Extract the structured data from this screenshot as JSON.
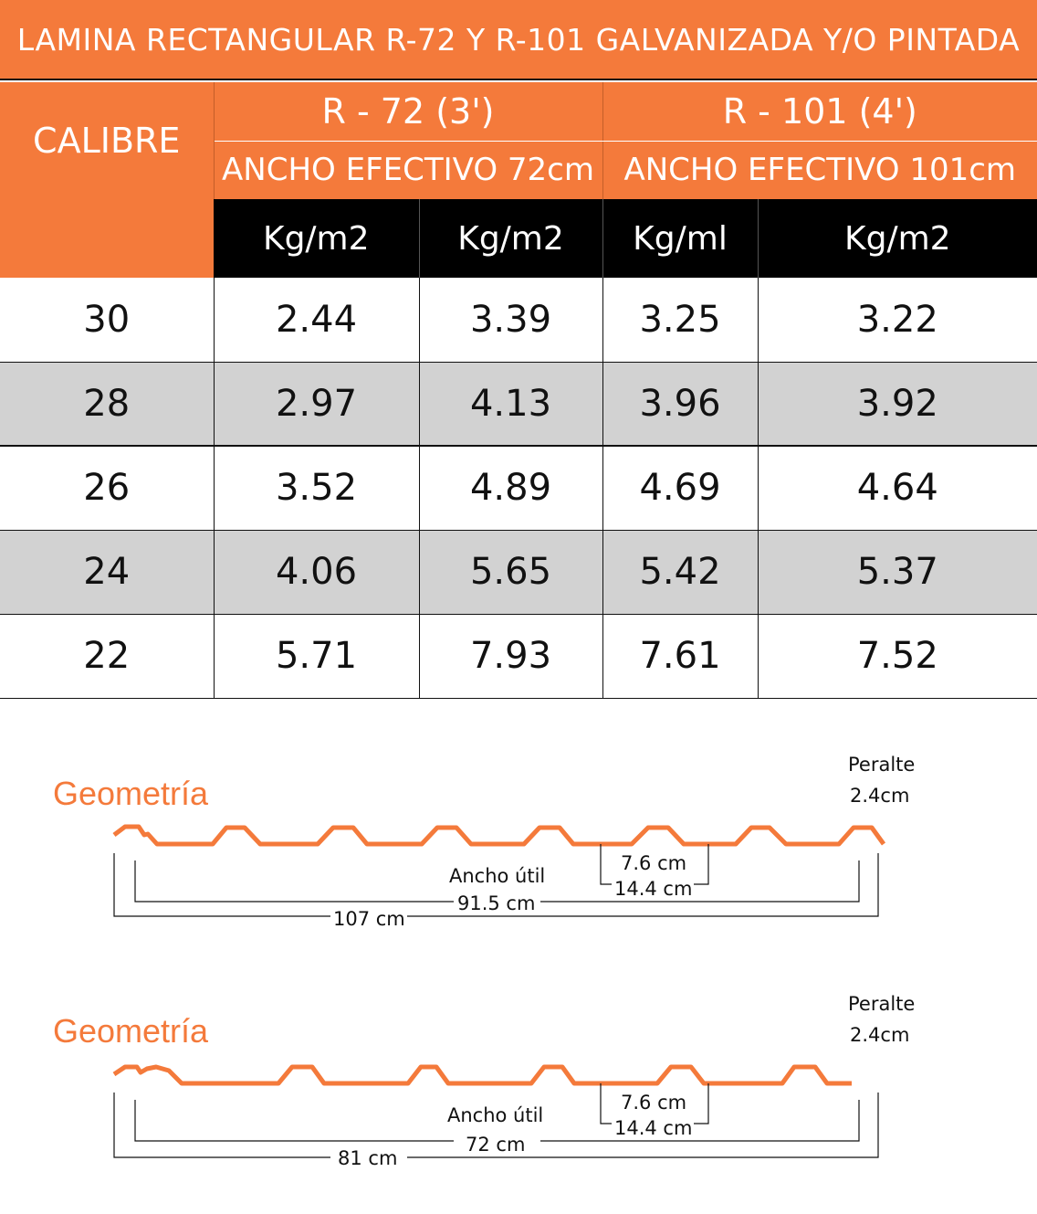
{
  "title": "LAMINA RECTANGULAR R-72 Y R-101 GALVANIZADA Y/O PINTADA",
  "table": {
    "calibre_header": "CALIBRE",
    "groups": [
      {
        "name": "R - 72 (3')",
        "ancho": "ANCHO  EFECTIVO 72cm"
      },
      {
        "name": "R - 101 (4')",
        "ancho": "ANCHO  EFECTIVO 101cm"
      }
    ],
    "units": [
      "Kg/m2",
      "Kg/m2",
      "Kg/ml",
      "Kg/m2"
    ],
    "rows": [
      {
        "calibre": "30",
        "values": [
          "2.44",
          "3.39",
          "3.25",
          "3.22"
        ]
      },
      {
        "calibre": "28",
        "values": [
          "2.97",
          "4.13",
          "3.96",
          "3.92"
        ]
      },
      {
        "calibre": "26",
        "values": [
          "3.52",
          "4.89",
          "4.69",
          "4.64"
        ]
      },
      {
        "calibre": "24",
        "values": [
          "4.06",
          "5.65",
          "5.42",
          "5.37"
        ]
      },
      {
        "calibre": "22",
        "values": [
          "5.71",
          "7.93",
          "7.61",
          "7.52"
        ]
      }
    ]
  },
  "colors": {
    "accent": "#f47a3b",
    "row_alt": "#d2d2d2",
    "unit_header": "#000000"
  },
  "geometry": [
    {
      "title": "Geometría",
      "peralte_label": "Peralte",
      "peralte_value": "2.4cm",
      "rib_label": "7.6 cm",
      "pitch_label": "14.4 cm",
      "ancho_util_label": "Ancho útil",
      "ancho_util_value": "91.5 cm",
      "total_width": "107 cm"
    },
    {
      "title": "Geometría",
      "peralte_label": "Peralte",
      "peralte_value": "2.4cm",
      "rib_label": "7.6 cm",
      "pitch_label": "14.4 cm",
      "ancho_util_label": "Ancho útil",
      "ancho_util_value": "72 cm",
      "total_width": "81 cm"
    }
  ]
}
